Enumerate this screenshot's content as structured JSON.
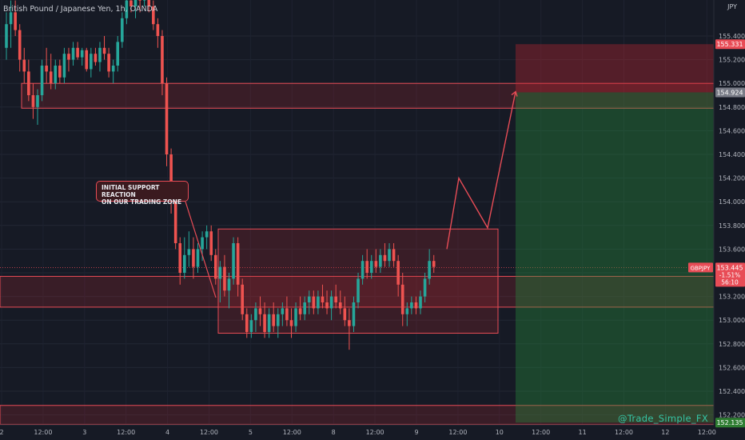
{
  "header": {
    "ticker_title": "British Pound / Japanese Yen, 1h, OANDA",
    "currency": "JPY"
  },
  "annotation": {
    "callout_line1": "INITIAL SUPPORT REACTION",
    "callout_line2": "ON OUR TRADING ZONE"
  },
  "watermark": "@Trade_Simple_FX",
  "chart_data": {
    "type": "candlestick",
    "symbol": "GBPJPY",
    "timeframe": "1h",
    "y_ticks": [
      152.2,
      152.4,
      152.6,
      152.8,
      153.0,
      153.2,
      153.4,
      153.6,
      153.8,
      154.0,
      154.2,
      154.4,
      154.6,
      154.8,
      155.0,
      155.2,
      155.4
    ],
    "ylim": [
      152.1,
      155.65
    ],
    "x_ticks": [
      "2",
      "12:00",
      "3",
      "12:00",
      "4",
      "12:00",
      "5",
      "12:00",
      "8",
      "12:00",
      "9",
      "12:00",
      "10",
      "12:00",
      "11",
      "12:00",
      "12",
      "12:00"
    ],
    "price_labels": {
      "target": "155.331",
      "entry_zone": "154.924",
      "current_symbol": "GBPJPY",
      "current_price": "153.445",
      "current_change": "-1.51%",
      "countdown": "56:10",
      "stop": "152.135"
    },
    "levels": {
      "current": 153.445,
      "target": 155.331,
      "entry": 154.924,
      "stop": 152.135
    },
    "zones": [
      {
        "name": "resistance-zone",
        "top": 155.0,
        "bottom": 154.79
      },
      {
        "name": "support-zone",
        "top": 153.37,
        "bottom": 153.11
      },
      {
        "name": "consolidation-range",
        "top": 153.77,
        "bottom": 152.89
      },
      {
        "name": "lower-zone",
        "top": 152.28,
        "bottom": 152.12
      }
    ],
    "projection": [
      153.6,
      154.2,
      153.78,
      154.93
    ],
    "candles": [
      [
        155.3,
        155.6,
        155.2,
        155.5
      ],
      [
        155.5,
        155.7,
        155.3,
        155.6
      ],
      [
        155.6,
        155.7,
        155.4,
        155.45
      ],
      [
        155.45,
        155.5,
        155.1,
        155.2
      ],
      [
        155.2,
        155.3,
        155.0,
        155.1
      ],
      [
        155.1,
        155.2,
        154.85,
        154.9
      ],
      [
        154.9,
        155.0,
        154.7,
        154.8
      ],
      [
        154.8,
        154.95,
        154.65,
        154.9
      ],
      [
        154.9,
        155.2,
        154.85,
        155.15
      ],
      [
        155.15,
        155.3,
        155.0,
        155.1
      ],
      [
        155.1,
        155.25,
        154.95,
        155.0
      ],
      [
        155.0,
        155.2,
        154.95,
        155.15
      ],
      [
        155.15,
        155.2,
        155.0,
        155.05
      ],
      [
        155.05,
        155.3,
        155.0,
        155.25
      ],
      [
        155.25,
        155.3,
        155.1,
        155.2
      ],
      [
        155.2,
        155.35,
        155.15,
        155.3
      ],
      [
        155.3,
        155.35,
        155.2,
        155.22
      ],
      [
        155.22,
        155.3,
        155.15,
        155.28
      ],
      [
        155.28,
        155.3,
        155.1,
        155.12
      ],
      [
        155.12,
        155.3,
        155.05,
        155.25
      ],
      [
        155.25,
        155.3,
        155.15,
        155.18
      ],
      [
        155.18,
        155.35,
        155.1,
        155.3
      ],
      [
        155.3,
        155.4,
        155.2,
        155.25
      ],
      [
        155.25,
        155.3,
        155.05,
        155.1
      ],
      [
        155.1,
        155.2,
        155.0,
        155.15
      ],
      [
        155.15,
        155.4,
        155.1,
        155.35
      ],
      [
        155.35,
        155.6,
        155.3,
        155.55
      ],
      [
        155.55,
        155.75,
        155.5,
        155.7
      ],
      [
        155.7,
        155.8,
        155.6,
        155.65
      ],
      [
        155.65,
        155.8,
        155.55,
        155.75
      ],
      [
        155.75,
        155.8,
        155.6,
        155.7
      ],
      [
        155.7,
        155.8,
        155.65,
        155.75
      ],
      [
        155.75,
        155.8,
        155.6,
        155.65
      ],
      [
        155.65,
        155.7,
        155.45,
        155.5
      ],
      [
        155.5,
        155.55,
        155.3,
        155.4
      ],
      [
        155.4,
        155.45,
        154.9,
        155.0
      ],
      [
        155.0,
        155.05,
        154.3,
        154.4
      ],
      [
        154.4,
        154.45,
        153.9,
        154.0
      ],
      [
        154.0,
        154.05,
        153.6,
        153.65
      ],
      [
        153.65,
        153.7,
        153.3,
        153.4
      ],
      [
        153.4,
        153.7,
        153.35,
        153.55
      ],
      [
        153.55,
        153.75,
        153.45,
        153.6
      ],
      [
        153.6,
        153.7,
        153.35,
        153.45
      ],
      [
        153.45,
        153.65,
        153.4,
        153.6
      ],
      [
        153.6,
        153.75,
        153.5,
        153.7
      ],
      [
        153.7,
        153.8,
        153.6,
        153.75
      ],
      [
        153.75,
        153.8,
        153.5,
        153.55
      ],
      [
        153.55,
        153.6,
        153.3,
        153.35
      ],
      [
        153.35,
        153.5,
        153.15,
        153.45
      ],
      [
        153.45,
        153.55,
        153.2,
        153.25
      ],
      [
        153.25,
        153.4,
        153.1,
        153.35
      ],
      [
        153.35,
        153.7,
        153.3,
        153.65
      ],
      [
        153.65,
        153.7,
        153.2,
        153.3
      ],
      [
        153.3,
        153.35,
        153.0,
        153.05
      ],
      [
        153.05,
        153.1,
        152.85,
        152.9
      ],
      [
        152.9,
        153.05,
        152.85,
        153.0
      ],
      [
        153.0,
        153.15,
        152.9,
        153.1
      ],
      [
        153.1,
        153.2,
        152.95,
        153.05
      ],
      [
        153.05,
        153.15,
        152.85,
        152.9
      ],
      [
        152.9,
        153.1,
        152.85,
        153.05
      ],
      [
        153.05,
        153.15,
        152.9,
        152.95
      ],
      [
        152.95,
        153.1,
        152.85,
        153.05
      ],
      [
        153.05,
        153.15,
        152.95,
        153.1
      ],
      [
        153.1,
        153.2,
        152.95,
        153.0
      ],
      [
        153.0,
        153.1,
        152.85,
        152.95
      ],
      [
        152.95,
        153.15,
        152.9,
        153.1
      ],
      [
        153.1,
        153.2,
        153.0,
        153.05
      ],
      [
        153.05,
        153.2,
        153.0,
        153.15
      ],
      [
        153.15,
        153.25,
        153.05,
        153.2
      ],
      [
        153.2,
        153.25,
        153.05,
        153.1
      ],
      [
        153.1,
        153.25,
        153.05,
        153.2
      ],
      [
        153.2,
        153.3,
        153.1,
        153.15
      ],
      [
        153.15,
        153.25,
        153.05,
        153.1
      ],
      [
        153.1,
        153.25,
        153.0,
        153.2
      ],
      [
        153.2,
        153.3,
        153.1,
        153.15
      ],
      [
        153.15,
        153.25,
        153.05,
        153.1
      ],
      [
        153.1,
        153.2,
        152.95,
        153.0
      ],
      [
        153.0,
        153.1,
        152.75,
        152.95
      ],
      [
        152.95,
        153.2,
        152.9,
        153.15
      ],
      [
        153.15,
        153.4,
        153.1,
        153.35
      ],
      [
        153.35,
        153.55,
        153.3,
        153.5
      ],
      [
        153.5,
        153.6,
        153.35,
        153.4
      ],
      [
        153.4,
        153.55,
        153.35,
        153.5
      ],
      [
        153.5,
        153.6,
        153.4,
        153.45
      ],
      [
        153.45,
        153.6,
        153.4,
        153.55
      ],
      [
        153.55,
        153.65,
        153.45,
        153.5
      ],
      [
        153.5,
        153.65,
        153.45,
        153.6
      ],
      [
        153.6,
        153.65,
        153.45,
        153.5
      ],
      [
        153.5,
        153.55,
        153.2,
        153.3
      ],
      [
        153.3,
        153.4,
        152.95,
        153.05
      ],
      [
        153.05,
        153.15,
        152.95,
        153.1
      ],
      [
        153.1,
        153.2,
        153.05,
        153.15
      ],
      [
        153.15,
        153.2,
        153.05,
        153.1
      ],
      [
        153.1,
        153.25,
        153.05,
        153.2
      ],
      [
        153.2,
        153.4,
        153.15,
        153.35
      ],
      [
        153.35,
        153.6,
        153.3,
        153.5
      ],
      [
        153.5,
        153.55,
        153.4,
        153.45
      ]
    ]
  }
}
